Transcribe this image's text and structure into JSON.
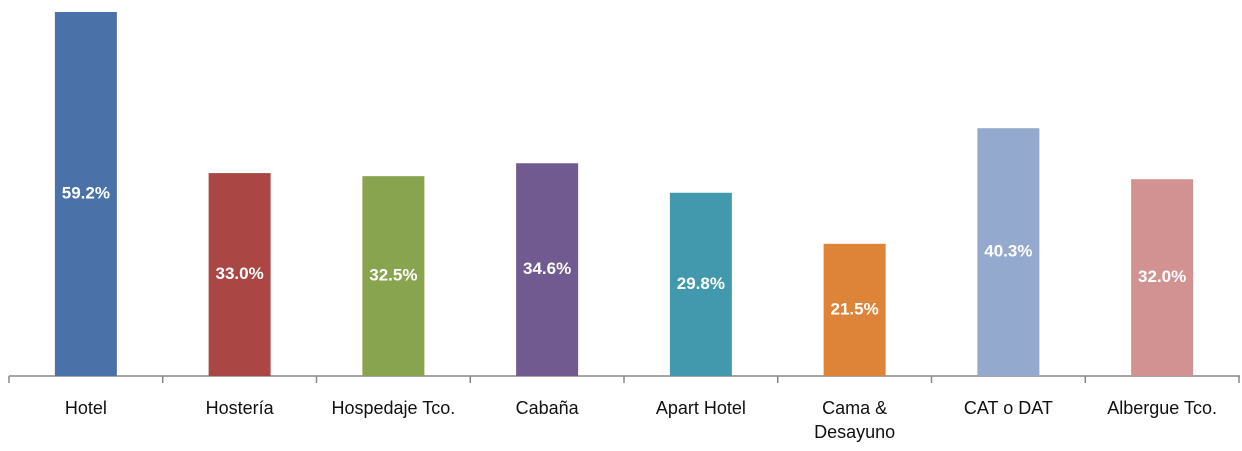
{
  "chart_data": {
    "type": "bar",
    "categories": [
      "Hotel",
      "Hostería",
      "Hospedaje Tco.",
      "Cabaña",
      "Apart Hotel",
      "Cama & Desayuno",
      "CAT o DAT",
      "Albergue Tco."
    ],
    "values": [
      59.2,
      33.0,
      32.5,
      34.6,
      29.8,
      21.5,
      40.3,
      32.0
    ],
    "value_labels": [
      "59.2%",
      "33.0%",
      "32.5%",
      "34.6%",
      "29.8%",
      "21.5%",
      "40.3%",
      "32.0%"
    ],
    "colors": [
      "#4a72a8",
      "#aa4644",
      "#88a44e",
      "#715a90",
      "#4299ae",
      "#dd8438",
      "#93a9ce",
      "#d39292"
    ]
  }
}
